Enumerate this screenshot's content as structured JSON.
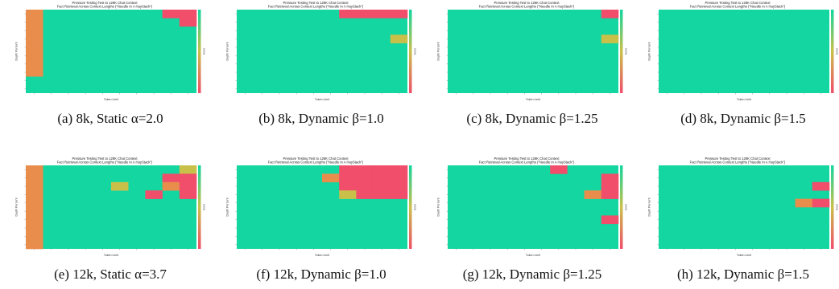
{
  "colors": {
    "good": "#13d6a0",
    "partial": "#e98d4c",
    "fail": "#f04e6a",
    "mid": "#c9c04a"
  },
  "chart_data": [
    {
      "type": "heatmap",
      "caption": "(a) 8k, Static α=2.0",
      "title": "Pressure Testing Test to 128K Chat Context",
      "subtitle": "Fact Retrieval Across Context Lengths (\"Needle In A HayStack\")",
      "xlabel": "Token Limit",
      "ylabel": "Depth Percent",
      "colorbar_label": "Score",
      "cols": 10,
      "rows": 10,
      "cells": [
        [
          0,
          0,
          "partial"
        ],
        [
          0,
          1,
          "partial"
        ],
        [
          0,
          2,
          "partial"
        ],
        [
          0,
          3,
          "partial"
        ],
        [
          0,
          4,
          "partial"
        ],
        [
          0,
          5,
          "partial"
        ],
        [
          0,
          6,
          "partial"
        ],
        [
          0,
          7,
          "partial"
        ],
        [
          8,
          0,
          "fail"
        ],
        [
          9,
          0,
          "fail"
        ],
        [
          9,
          1,
          "fail"
        ]
      ]
    },
    {
      "type": "heatmap",
      "caption": "(b) 8k, Dynamic β=1.0",
      "title": "Pressure Testing Test to 128K Chat Context",
      "subtitle": "Fact Retrieval Across Context Lengths (\"Needle In A HayStack\")",
      "xlabel": "Token Limit",
      "ylabel": "Depth Percent",
      "colorbar_label": "Score",
      "cols": 10,
      "rows": 10,
      "cells": [
        [
          6,
          0,
          "fail"
        ],
        [
          7,
          0,
          "fail"
        ],
        [
          8,
          0,
          "fail"
        ],
        [
          9,
          0,
          "fail"
        ],
        [
          9,
          3,
          "mid"
        ]
      ]
    },
    {
      "type": "heatmap",
      "caption": "(c) 8k, Dynamic β=1.25",
      "title": "Pressure Testing Test to 128K Chat Context",
      "subtitle": "Fact Retrieval Across Context Lengths (\"Needle In A HayStack\")",
      "xlabel": "Token Limit",
      "ylabel": "Depth Percent",
      "colorbar_label": "Score",
      "cols": 10,
      "rows": 10,
      "cells": [
        [
          9,
          0,
          "fail"
        ],
        [
          9,
          3,
          "mid"
        ]
      ]
    },
    {
      "type": "heatmap",
      "caption": "(d) 8k, Dynamic β=1.5",
      "title": "Pressure Testing Test to 128K Chat Context",
      "subtitle": "Fact Retrieval Across Context Lengths (\"Needle In A HayStack\")",
      "xlabel": "Token Limit",
      "ylabel": "Depth Percent",
      "colorbar_label": "Score",
      "cols": 10,
      "rows": 10,
      "cells": []
    },
    {
      "type": "heatmap",
      "caption": "(e) 12k, Static α=3.7",
      "title": "Pressure Testing Test to 128K Chat Context",
      "subtitle": "Fact Retrieval Across Context Lengths (\"Needle In A HayStack\")",
      "xlabel": "Token Limit",
      "ylabel": "Depth Percent",
      "colorbar_label": "Score",
      "cols": 10,
      "rows": 10,
      "cells": [
        [
          0,
          0,
          "partial"
        ],
        [
          0,
          1,
          "partial"
        ],
        [
          0,
          2,
          "partial"
        ],
        [
          0,
          3,
          "partial"
        ],
        [
          0,
          4,
          "partial"
        ],
        [
          0,
          5,
          "partial"
        ],
        [
          0,
          6,
          "partial"
        ],
        [
          0,
          7,
          "partial"
        ],
        [
          0,
          8,
          "partial"
        ],
        [
          0,
          9,
          "partial"
        ],
        [
          9,
          0,
          "mid"
        ],
        [
          8,
          1,
          "fail"
        ],
        [
          9,
          1,
          "fail"
        ],
        [
          5,
          2,
          "mid"
        ],
        [
          8,
          2,
          "partial"
        ],
        [
          9,
          2,
          "fail"
        ],
        [
          7,
          3,
          "fail"
        ],
        [
          9,
          3,
          "fail"
        ]
      ]
    },
    {
      "type": "heatmap",
      "caption": "(f) 12k, Dynamic β=1.0",
      "title": "Pressure Testing Test to 128K Chat Context",
      "subtitle": "Fact Retrieval Across Context Lengths (\"Needle In A HayStack\")",
      "xlabel": "Token Limit",
      "ylabel": "Depth Percent",
      "colorbar_label": "Score",
      "cols": 10,
      "rows": 10,
      "cells": [
        [
          6,
          0,
          "fail"
        ],
        [
          7,
          0,
          "fail"
        ],
        [
          8,
          0,
          "fail"
        ],
        [
          9,
          0,
          "fail"
        ],
        [
          5,
          1,
          "partial"
        ],
        [
          6,
          1,
          "fail"
        ],
        [
          7,
          1,
          "fail"
        ],
        [
          8,
          1,
          "fail"
        ],
        [
          9,
          1,
          "fail"
        ],
        [
          6,
          2,
          "fail"
        ],
        [
          7,
          2,
          "fail"
        ],
        [
          8,
          2,
          "fail"
        ],
        [
          9,
          2,
          "fail"
        ],
        [
          6,
          3,
          "mid"
        ],
        [
          7,
          3,
          "fail"
        ],
        [
          8,
          3,
          "fail"
        ],
        [
          9,
          3,
          "fail"
        ]
      ]
    },
    {
      "type": "heatmap",
      "caption": "(g) 12k, Dynamic β=1.25",
      "title": "Pressure Testing Test to 128K Chat Context",
      "subtitle": "Fact Retrieval Across Context Lengths (\"Needle In A HayStack\")",
      "xlabel": "Token Limit",
      "ylabel": "Depth Percent",
      "colorbar_label": "Score",
      "cols": 10,
      "rows": 10,
      "cells": [
        [
          6,
          0,
          "fail"
        ],
        [
          9,
          1,
          "fail"
        ],
        [
          9,
          2,
          "fail"
        ],
        [
          8,
          3,
          "partial"
        ],
        [
          9,
          3,
          "fail"
        ],
        [
          9,
          6,
          "fail"
        ]
      ]
    },
    {
      "type": "heatmap",
      "caption": "(h) 12k, Dynamic β=1.5",
      "title": "Pressure Testing Test to 128K Chat Context",
      "subtitle": "Fact Retrieval Across Context Lengths (\"Needle In A HayStack\")",
      "xlabel": "Token Limit",
      "ylabel": "Depth Percent",
      "colorbar_label": "Score",
      "cols": 10,
      "rows": 10,
      "cells": [
        [
          9,
          2,
          "fail"
        ],
        [
          8,
          4,
          "partial"
        ],
        [
          9,
          4,
          "fail"
        ]
      ]
    }
  ]
}
